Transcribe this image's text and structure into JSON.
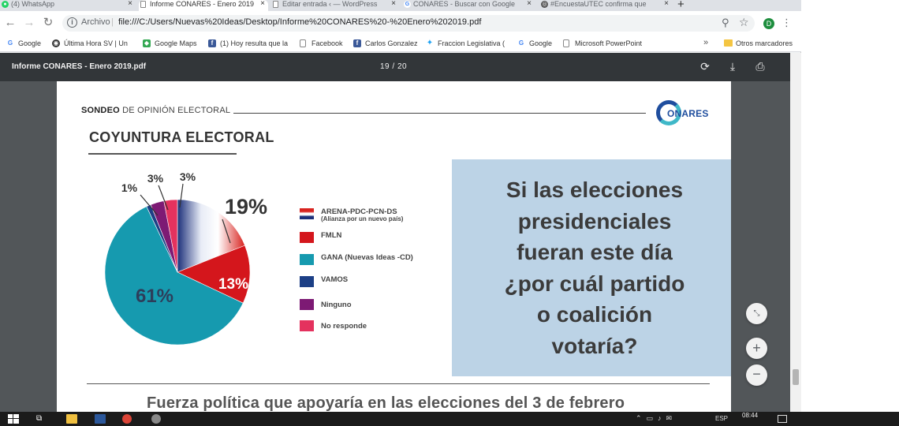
{
  "tabs": [
    {
      "label": "(4) WhatsApp",
      "icon": "whatsapp-icon",
      "active": false
    },
    {
      "label": "Informe CONARES - Enero 2019",
      "icon": "document-icon",
      "active": true
    },
    {
      "label": "Editar entrada ‹ — WordPress",
      "icon": "document-icon",
      "active": false
    },
    {
      "label": "CONARES - Buscar con Google",
      "icon": "google-icon",
      "active": false
    },
    {
      "label": "#EncuestaUTEC confirma que",
      "icon": "globe-icon",
      "active": false
    }
  ],
  "omnibox": {
    "scheme_label": "Archivo",
    "url": "file:///C:/Users/Nuevas%20Ideas/Desktop/Informe%20CONARES%20-%20Enero%202019.pdf",
    "profile_initial": "D"
  },
  "bookmarks": [
    {
      "label": "Google",
      "icon": "google-icon"
    },
    {
      "label": "Última Hora SV | Un",
      "icon": "news-icon"
    },
    {
      "label": "Google Maps",
      "icon": "maps-icon"
    },
    {
      "label": "(1) Hoy resulta que la",
      "icon": "facebook-icon"
    },
    {
      "label": "Facebook",
      "icon": "document-icon"
    },
    {
      "label": "Carlos Gonzalez",
      "icon": "facebook-icon"
    },
    {
      "label": "Fraccion Legislativa (",
      "icon": "twitter-icon"
    },
    {
      "label": "Google",
      "icon": "google-icon"
    },
    {
      "label": "Microsoft PowerPoint",
      "icon": "document-icon"
    }
  ],
  "bookmarks_more": "»",
  "bookmarks_other": "Otros marcadores",
  "pdf": {
    "title": "Informe CONARES - Enero 2019.pdf",
    "pages": "19 / 20"
  },
  "slide": {
    "header_bold": "SONDEO",
    "header_rest": " DE OPINIÓN ELECTORAL",
    "logo_text": "ONARES",
    "section_title": "COYUNTURA ELECTORAL",
    "question": "Si las elecciones presidenciales fueran este día ¿por cuál partido o coalición votaría?",
    "question_lines": [
      "Si las elecciones",
      "presidenciales",
      "fueran este día",
      "¿por cuál partido",
      "o coalición",
      "votaría?"
    ],
    "subtitle": "Fuerza política que apoyaría en las elecciones del 3 de febrero"
  },
  "chart_data": {
    "type": "pie",
    "title": "",
    "slices": [
      {
        "label": "ARENA-PDC-PCN-DS",
        "sublabel": "(Alianza por un nuevo país)",
        "value": 19,
        "display": "19%",
        "color": "#cf1f1f"
      },
      {
        "label": "FMLN",
        "value": 13,
        "display": "13%",
        "color": "#d4161c"
      },
      {
        "label": "GANA (Nuevas Ideas -CD)",
        "value": 61,
        "display": "61%",
        "color": "#169aaf"
      },
      {
        "label": "VAMOS",
        "value": 1,
        "display": "1%",
        "color": "#1c3f86"
      },
      {
        "label": "Ninguno",
        "value": 3,
        "display": "3%",
        "color": "#7d1a74"
      },
      {
        "label": "No responde",
        "value": 3,
        "display": "3%",
        "color": "#e4325e"
      }
    ],
    "legend_position": "right"
  },
  "taskbar": {
    "language": "ESP",
    "time": "08:44"
  }
}
